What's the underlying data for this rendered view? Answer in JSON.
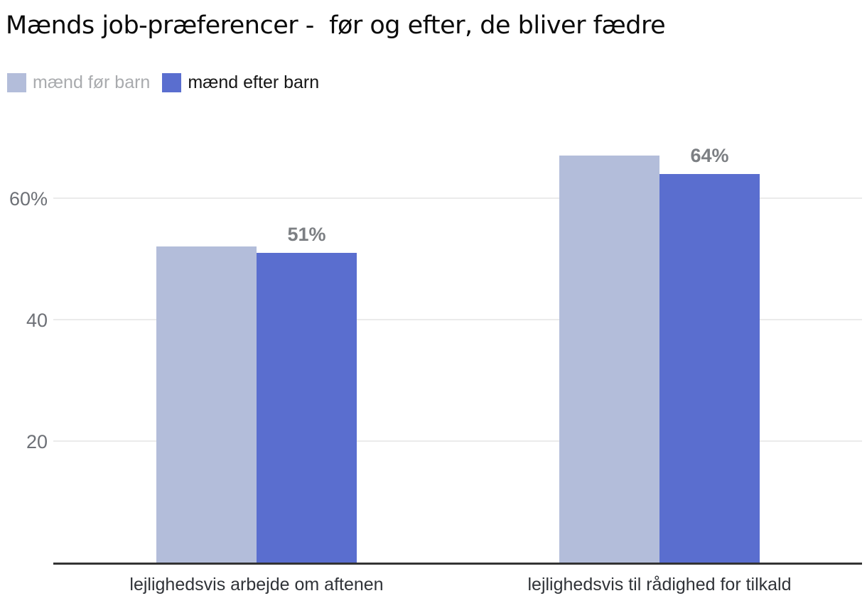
{
  "title": "Mænds job-præferencer -  før og efter, de bliver fædre",
  "legend": [
    {
      "label": "mænd før barn",
      "swatch_color": "#b3bdda",
      "text_color": "#a9abae"
    },
    {
      "label": "mænd efter barn",
      "swatch_color": "#5a6ecf",
      "text_color": "#161616"
    }
  ],
  "chart_data": {
    "type": "bar",
    "title": "Mænds job-præferencer -  før og efter, de bliver fædre",
    "categories": [
      "lejlighedsvis arbejde om aftenen",
      "lejlighedsvis til rådighed for tilkald"
    ],
    "series": [
      {
        "key": "maend-foer-barn",
        "name": "mænd før barn",
        "color": "#b3bdda",
        "values": [
          52,
          67
        ],
        "value_labels": [
          null,
          null
        ]
      },
      {
        "key": "maend-efter-barn",
        "name": "mænd efter barn",
        "color": "#5a6ecf",
        "values": [
          51,
          64
        ],
        "value_labels": [
          "51%",
          "64%"
        ]
      }
    ],
    "xlabel": "",
    "ylabel": "",
    "y_ticks": [
      {
        "value": 20,
        "label": "20"
      },
      {
        "value": 40,
        "label": "40"
      },
      {
        "value": 60,
        "label": "60%"
      }
    ],
    "ylim": [
      0,
      75
    ],
    "grid": true,
    "legend_position": "top-left",
    "grid_color": "#ebebeb",
    "axis_color": "#333333",
    "tick_label_color": "#6d7076",
    "data_label_color": "#7c7f83",
    "background_color": "#ffffff"
  }
}
